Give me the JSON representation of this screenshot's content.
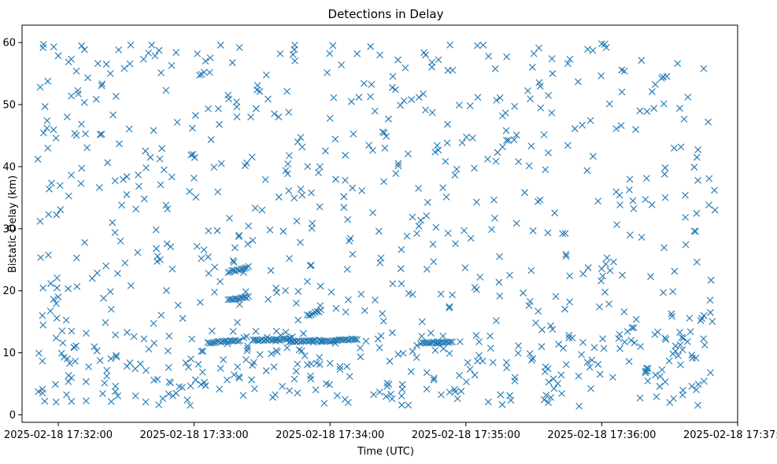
{
  "chart_data": {
    "type": "scatter",
    "title": "Detections in Delay",
    "xlabel": "Time (UTC)",
    "ylabel": "Bistatic Delay (km)",
    "marker": "x",
    "color": "#1f77b4",
    "grid": false,
    "xlim": [
      "2025-02-18 17:31:44",
      "2025-02-18 17:37:00"
    ],
    "ylim": [
      -1.2,
      62.8
    ],
    "x_ticks": [
      "2025-02-18 17:32:00",
      "2025-02-18 17:33:00",
      "2025-02-18 17:34:00",
      "2025-02-18 17:35:00",
      "2025-02-18 17:36:00",
      "2025-02-18 17:37:00"
    ],
    "y_ticks": [
      0,
      10,
      20,
      30,
      40,
      50,
      60
    ],
    "scatter_seed": 7,
    "point_cloud_range": [
      "2025-02-18 17:31:51",
      "2025-02-18 17:36:50"
    ],
    "points": [
      [
        "2025-02-18 17:31:51",
        41.2
      ],
      [
        "2025-02-18 17:31:52",
        52.8
      ],
      [
        "2025-02-18 17:31:52",
        31.2
      ],
      [
        "2025-02-18 17:31:53",
        16.0
      ],
      [
        "2025-02-18 17:31:54",
        2.2
      ],
      [
        "2025-02-18 17:31:55",
        46.2
      ],
      [
        "2025-02-18 17:31:56",
        36.4
      ],
      [
        "2025-02-18 17:31:58",
        59.3
      ],
      [
        "2025-02-18 17:31:59",
        44.6
      ],
      [
        "2025-02-18 17:32:00",
        19.0
      ],
      [
        "2025-02-18 17:32:02",
        11.6
      ],
      [
        "2025-02-18 17:32:05",
        8.3
      ],
      [
        "2025-02-18 17:32:08",
        55.4
      ],
      [
        "2025-02-18 17:32:12",
        45.3
      ],
      [
        "2025-02-18 17:32:15",
        22.0
      ],
      [
        "2025-02-18 17:32:20",
        18.8
      ],
      [
        "2025-02-18 17:32:23",
        55.0
      ],
      [
        "2025-02-18 17:32:28",
        33.8
      ],
      [
        "2025-02-18 17:32:32",
        59.6
      ],
      [
        "2025-02-18 17:32:38",
        34.8
      ],
      [
        "2025-02-18 17:32:40",
        10.6
      ],
      [
        "2025-02-18 17:32:45",
        25.0
      ],
      [
        "2025-02-18 17:32:52",
        58.4
      ],
      [
        "2025-02-18 17:32:58",
        36.0
      ],
      [
        "2025-02-18 17:33:05",
        57.0
      ],
      [
        "2025-02-18 17:33:12",
        40.5
      ],
      [
        "2025-02-18 17:33:15",
        51.5
      ],
      [
        "2025-02-18 17:33:20",
        59.2
      ],
      [
        "2025-02-18 17:33:25",
        48.0
      ],
      [
        "2025-02-18 17:33:30",
        33.0
      ],
      [
        "2025-02-18 17:33:38",
        58.2
      ],
      [
        "2025-02-18 17:33:42",
        41.8
      ],
      [
        "2025-02-18 17:33:50",
        21.5
      ],
      [
        "2025-02-18 17:34:00",
        47.8
      ],
      [
        "2025-02-18 17:34:05",
        56.4
      ],
      [
        "2025-02-18 17:34:08",
        2.0
      ],
      [
        "2025-02-18 17:34:15",
        53.4
      ],
      [
        "2025-02-18 17:34:22",
        58.0
      ],
      [
        "2025-02-18 17:34:30",
        57.2
      ],
      [
        "2025-02-18 17:34:36",
        50.8
      ],
      [
        "2025-02-18 17:34:45",
        56.8
      ],
      [
        "2025-02-18 17:34:53",
        59.6
      ],
      [
        "2025-02-18 17:35:05",
        59.5
      ],
      [
        "2025-02-18 17:35:10",
        57.8
      ],
      [
        "2025-02-18 17:35:18",
        57.7
      ],
      [
        "2025-02-18 17:35:30",
        58.2
      ],
      [
        "2025-02-18 17:35:38",
        57.4
      ],
      [
        "2025-02-18 17:35:45",
        56.6
      ],
      [
        "2025-02-18 17:35:50",
        1.4
      ],
      [
        "2025-02-18 17:36:00",
        59.8
      ],
      [
        "2025-02-18 17:36:02",
        59.2
      ],
      [
        "2025-02-18 17:36:10",
        55.4
      ],
      [
        "2025-02-18 17:36:20",
        48.9
      ],
      [
        "2025-02-18 17:36:30",
        2.0
      ],
      [
        "2025-02-18 17:36:38",
        51.2
      ],
      [
        "2025-02-18 17:36:42",
        41.5
      ],
      [
        "2025-02-18 17:36:45",
        55.8
      ],
      [
        "2025-02-18 17:36:47",
        47.2
      ],
      [
        "2025-02-18 17:36:48",
        6.8
      ],
      [
        "2025-02-18 17:36:50",
        33.0
      ]
    ],
    "tracks": [
      {
        "start": "2025-02-18 17:33:15",
        "end": "2025-02-18 17:33:24",
        "y_start": 18.6,
        "y_end": 19.0
      },
      {
        "start": "2025-02-18 17:33:06",
        "end": "2025-02-18 17:33:20",
        "y_start": 11.6,
        "y_end": 12.0
      },
      {
        "start": "2025-02-18 17:33:26",
        "end": "2025-02-18 17:33:42",
        "y_start": 12.0,
        "y_end": 12.2
      },
      {
        "start": "2025-02-18 17:33:42",
        "end": "2025-02-18 17:33:56",
        "y_start": 11.8,
        "y_end": 12.0
      },
      {
        "start": "2025-02-18 17:33:56",
        "end": "2025-02-18 17:34:12",
        "y_start": 11.8,
        "y_end": 12.2
      },
      {
        "start": "2025-02-18 17:34:40",
        "end": "2025-02-18 17:34:54",
        "y_start": 11.6,
        "y_end": 11.8
      },
      {
        "start": "2025-02-18 17:33:15",
        "end": "2025-02-18 17:33:24",
        "y_start": 23.0,
        "y_end": 23.8
      },
      {
        "start": "2025-02-18 17:33:50",
        "end": "2025-02-18 17:33:56",
        "y_start": 16.0,
        "y_end": 16.8
      }
    ]
  }
}
